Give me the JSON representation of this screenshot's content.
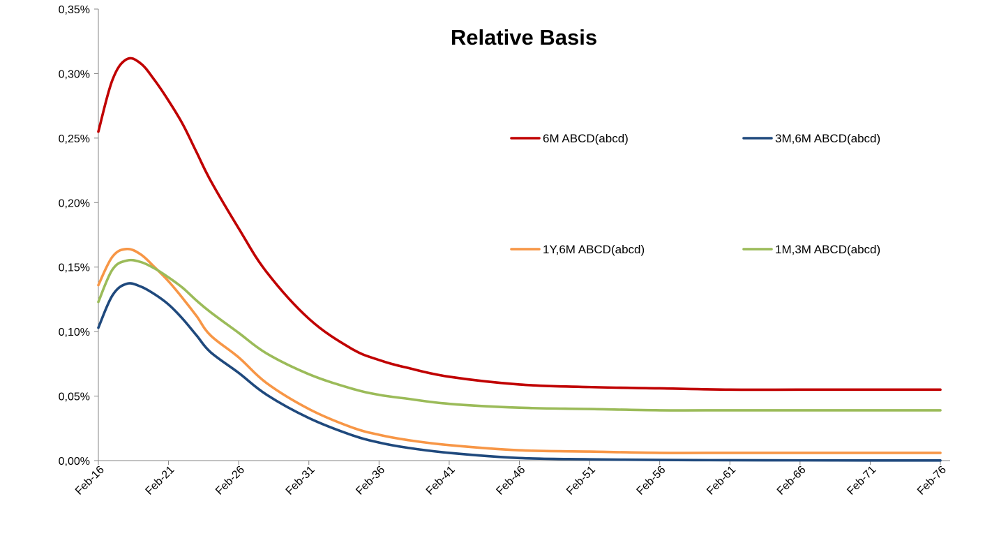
{
  "chart_data": {
    "type": "line",
    "title": "Relative Basis",
    "xlabel": "",
    "ylabel": "",
    "x_tick_labels": [
      "Feb-16",
      "Feb-21",
      "Feb-26",
      "Feb-31",
      "Feb-36",
      "Feb-41",
      "Feb-46",
      "Feb-51",
      "Feb-56",
      "Feb-61",
      "Feb-66",
      "Feb-71",
      "Feb-76"
    ],
    "y_tick_labels": [
      "0,00%",
      "0,05%",
      "0,10%",
      "0,15%",
      "0,20%",
      "0,25%",
      "0,30%",
      "0,35%"
    ],
    "ylim": [
      0,
      0.35
    ],
    "y_unit": "%",
    "x": [
      2016,
      2017,
      2018,
      2019,
      2020,
      2021,
      2022,
      2023,
      2024,
      2026,
      2028,
      2031,
      2034,
      2036,
      2038,
      2041,
      2046,
      2051,
      2056,
      2061,
      2066,
      2071,
      2076
    ],
    "grid": false,
    "legend_position": "right, two columns",
    "series": [
      {
        "name": "6M ABCD(abcd)",
        "color": "#C00000",
        "values": [
          0.255,
          0.295,
          0.311,
          0.308,
          0.295,
          0.279,
          0.261,
          0.239,
          0.217,
          0.18,
          0.146,
          0.11,
          0.087,
          0.078,
          0.072,
          0.065,
          0.059,
          0.057,
          0.056,
          0.055,
          0.055,
          0.055,
          0.055
        ]
      },
      {
        "name": "3M,6M ABCD(abcd)",
        "color": "#1F497D",
        "values": [
          0.103,
          0.128,
          0.137,
          0.135,
          0.129,
          0.121,
          0.11,
          0.097,
          0.084,
          0.068,
          0.051,
          0.033,
          0.02,
          0.014,
          0.01,
          0.006,
          0.002,
          0.001,
          0.0005,
          0.0003,
          0.0002,
          0.0001,
          0.0001
        ]
      },
      {
        "name": "1Y,6M ABCD(abcd)",
        "color": "#F79646",
        "values": [
          0.136,
          0.158,
          0.164,
          0.16,
          0.15,
          0.139,
          0.126,
          0.112,
          0.097,
          0.08,
          0.06,
          0.04,
          0.026,
          0.02,
          0.016,
          0.012,
          0.008,
          0.007,
          0.006,
          0.006,
          0.006,
          0.006,
          0.006
        ]
      },
      {
        "name": "1M,3M ABCD(abcd)",
        "color": "#9BBB59",
        "values": [
          0.123,
          0.148,
          0.155,
          0.154,
          0.149,
          0.142,
          0.134,
          0.124,
          0.115,
          0.099,
          0.083,
          0.067,
          0.056,
          0.051,
          0.048,
          0.044,
          0.041,
          0.04,
          0.039,
          0.039,
          0.039,
          0.039,
          0.039
        ]
      }
    ]
  }
}
